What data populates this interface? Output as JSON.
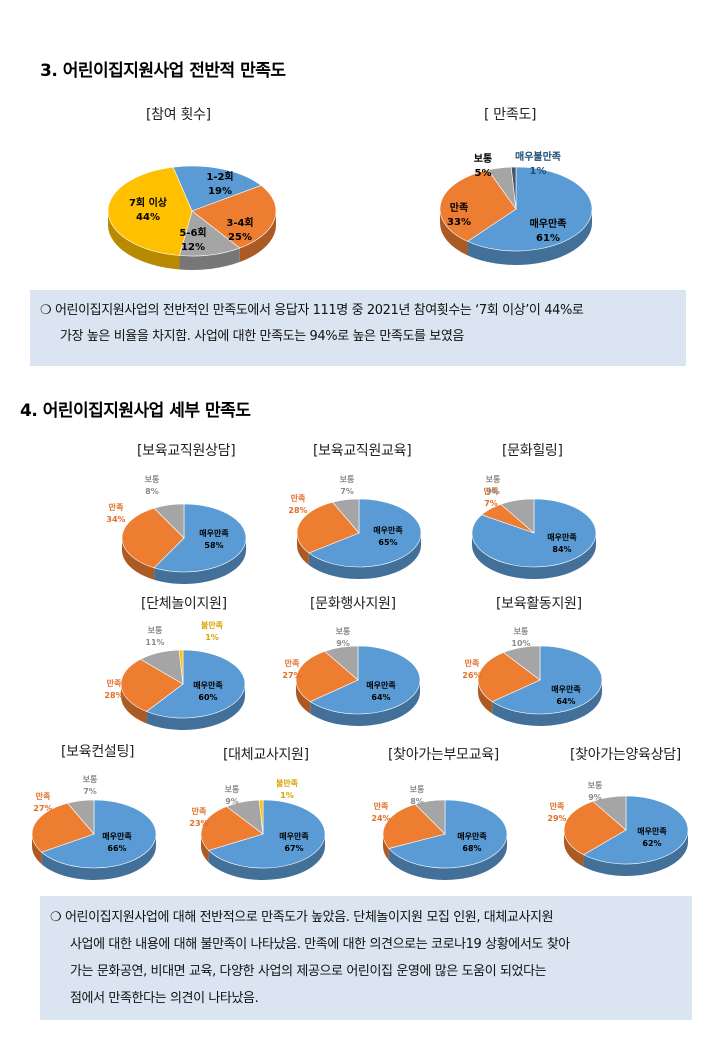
{
  "section3": {
    "heading": "3. 어린이집지원사업 전반적 만족도",
    "note_lines": [
      "❍ 어린이집지원사업의 전반적인 만족도에서 응답자 111명 중 2021년 참여횟수는 ‘7회 이상’이 44%로",
      "가장 높은 비율을 차지함. 사업에 대한 만족도는 94%로 높은 만족도를 보였음"
    ]
  },
  "section4": {
    "heading": "4. 어린이집지원사업 세부 만족도",
    "note_lines": [
      "❍ 어린이집지원사업에 대해 전반적으로 만족도가 높았음. 단체놀이지원 모집 인원, 대체교사지원",
      "사업에 대한 내용에 대해 불만족이 나타났음. 만족에 대한 의견으로는 코로나19 상황에서도 찾아",
      "가는 문화공연, 비대면 교육, 다양한 사업의 제공으로 어린이집 운영에 많은 도움이 되었다는",
      "점에서 만족한다는 의견이 나타났음."
    ]
  },
  "colors": {
    "very_satisfied": "#5b9bd5",
    "satisfied": "#ed7d31",
    "normal": "#a5a5a5",
    "dissatisfied": "#ffc000",
    "very_dissatisfied": "#44546a",
    "count_1_2": "#5b9bd5",
    "count_3_4": "#ed7d31",
    "count_5_6": "#a5a5a5",
    "count_7plus": "#ffc000",
    "box_bg": "#dbe5f1"
  },
  "chart_data": [
    {
      "type": "pie",
      "title": "[참여 횟수]",
      "slices": [
        {
          "label": "1-2회",
          "value": 19,
          "value_label": "19%",
          "color": "#5b9bd5"
        },
        {
          "label": "3-4회",
          "value": 25,
          "value_label": "25%",
          "color": "#ed7d31"
        },
        {
          "label": "5-6회",
          "value": 12,
          "value_label": "12%",
          "color": "#a5a5a5"
        },
        {
          "label": "7회 이상",
          "value": 44,
          "value_label": "44%",
          "color": "#ffc000"
        }
      ]
    },
    {
      "type": "pie",
      "title": "[ 만족도]",
      "slices": [
        {
          "label": "매우만족",
          "value": 61,
          "value_label": "61%",
          "color": "#5b9bd5"
        },
        {
          "label": "만족",
          "value": 33,
          "value_label": "33%",
          "color": "#ed7d31"
        },
        {
          "label": "보통",
          "value": 5,
          "value_label": "5%",
          "color": "#a5a5a5"
        },
        {
          "label": "매우불만족",
          "value": 1,
          "value_label": "1%",
          "color": "#44546a"
        }
      ]
    },
    {
      "type": "pie",
      "title": "[보육교직원상담]",
      "slices": [
        {
          "label": "매우만족",
          "value": 58,
          "value_label": "58%",
          "color": "#5b9bd5"
        },
        {
          "label": "만족",
          "value": 34,
          "value_label": "34%",
          "color": "#ed7d31"
        },
        {
          "label": "보통",
          "value": 8,
          "value_label": "8%",
          "color": "#a5a5a5"
        }
      ]
    },
    {
      "type": "pie",
      "title": "[보육교직원교육]",
      "slices": [
        {
          "label": "매우만족",
          "value": 65,
          "value_label": "65%",
          "color": "#5b9bd5"
        },
        {
          "label": "만족",
          "value": 28,
          "value_label": "28%",
          "color": "#ed7d31"
        },
        {
          "label": "보통",
          "value": 7,
          "value_label": "7%",
          "color": "#a5a5a5"
        }
      ]
    },
    {
      "type": "pie",
      "title": "[문화힐링]",
      "slices": [
        {
          "label": "매우만족",
          "value": 84,
          "value_label": "84%",
          "color": "#5b9bd5"
        },
        {
          "label": "만족",
          "value": 7,
          "value_label": "7%",
          "color": "#ed7d31"
        },
        {
          "label": "보통",
          "value": 9,
          "value_label": "9%",
          "color": "#a5a5a5"
        }
      ]
    },
    {
      "type": "pie",
      "title": "[단체놀이지원]",
      "slices": [
        {
          "label": "매우만족",
          "value": 60,
          "value_label": "60%",
          "color": "#5b9bd5"
        },
        {
          "label": "만족",
          "value": 28,
          "value_label": "28%",
          "color": "#ed7d31"
        },
        {
          "label": "보통",
          "value": 11,
          "value_label": "11%",
          "color": "#a5a5a5"
        },
        {
          "label": "불만족",
          "value": 1,
          "value_label": "1%",
          "color": "#ffc000"
        }
      ]
    },
    {
      "type": "pie",
      "title": "[문화행사지원]",
      "slices": [
        {
          "label": "매우만족",
          "value": 64,
          "value_label": "64%",
          "color": "#5b9bd5"
        },
        {
          "label": "만족",
          "value": 27,
          "value_label": "27%",
          "color": "#ed7d31"
        },
        {
          "label": "보통",
          "value": 9,
          "value_label": "9%",
          "color": "#a5a5a5"
        }
      ]
    },
    {
      "type": "pie",
      "title": "[보육활동지원]",
      "slices": [
        {
          "label": "매우만족",
          "value": 64,
          "value_label": "64%",
          "color": "#5b9bd5"
        },
        {
          "label": "만족",
          "value": 26,
          "value_label": "26%",
          "color": "#ed7d31"
        },
        {
          "label": "보통",
          "value": 10,
          "value_label": "10%",
          "color": "#a5a5a5"
        }
      ]
    },
    {
      "type": "pie",
      "title": "[보육컨설팅]",
      "slices": [
        {
          "label": "매우만족",
          "value": 66,
          "value_label": "66%",
          "color": "#5b9bd5"
        },
        {
          "label": "만족",
          "value": 27,
          "value_label": "27%",
          "color": "#ed7d31"
        },
        {
          "label": "보통",
          "value": 7,
          "value_label": "7%",
          "color": "#a5a5a5"
        }
      ]
    },
    {
      "type": "pie",
      "title": "[대체교사지원]",
      "slices": [
        {
          "label": "매우만족",
          "value": 67,
          "value_label": "67%",
          "color": "#5b9bd5"
        },
        {
          "label": "만족",
          "value": 23,
          "value_label": "23%",
          "color": "#ed7d31"
        },
        {
          "label": "보통",
          "value": 9,
          "value_label": "9%",
          "color": "#a5a5a5"
        },
        {
          "label": "불만족",
          "value": 1,
          "value_label": "1%",
          "color": "#ffc000"
        }
      ]
    },
    {
      "type": "pie",
      "title": "[찾아가는부모교육]",
      "slices": [
        {
          "label": "매우만족",
          "value": 68,
          "value_label": "68%",
          "color": "#5b9bd5"
        },
        {
          "label": "만족",
          "value": 24,
          "value_label": "24%",
          "color": "#ed7d31"
        },
        {
          "label": "보통",
          "value": 8,
          "value_label": "8%",
          "color": "#a5a5a5"
        }
      ]
    },
    {
      "type": "pie",
      "title": "[찾아가는양육상담]",
      "slices": [
        {
          "label": "매우만족",
          "value": 62,
          "value_label": "62%",
          "color": "#5b9bd5"
        },
        {
          "label": "만족",
          "value": 29,
          "value_label": "29%",
          "color": "#ed7d31"
        },
        {
          "label": "보통",
          "value": 9,
          "value_label": "9%",
          "color": "#a5a5a5"
        }
      ]
    }
  ]
}
